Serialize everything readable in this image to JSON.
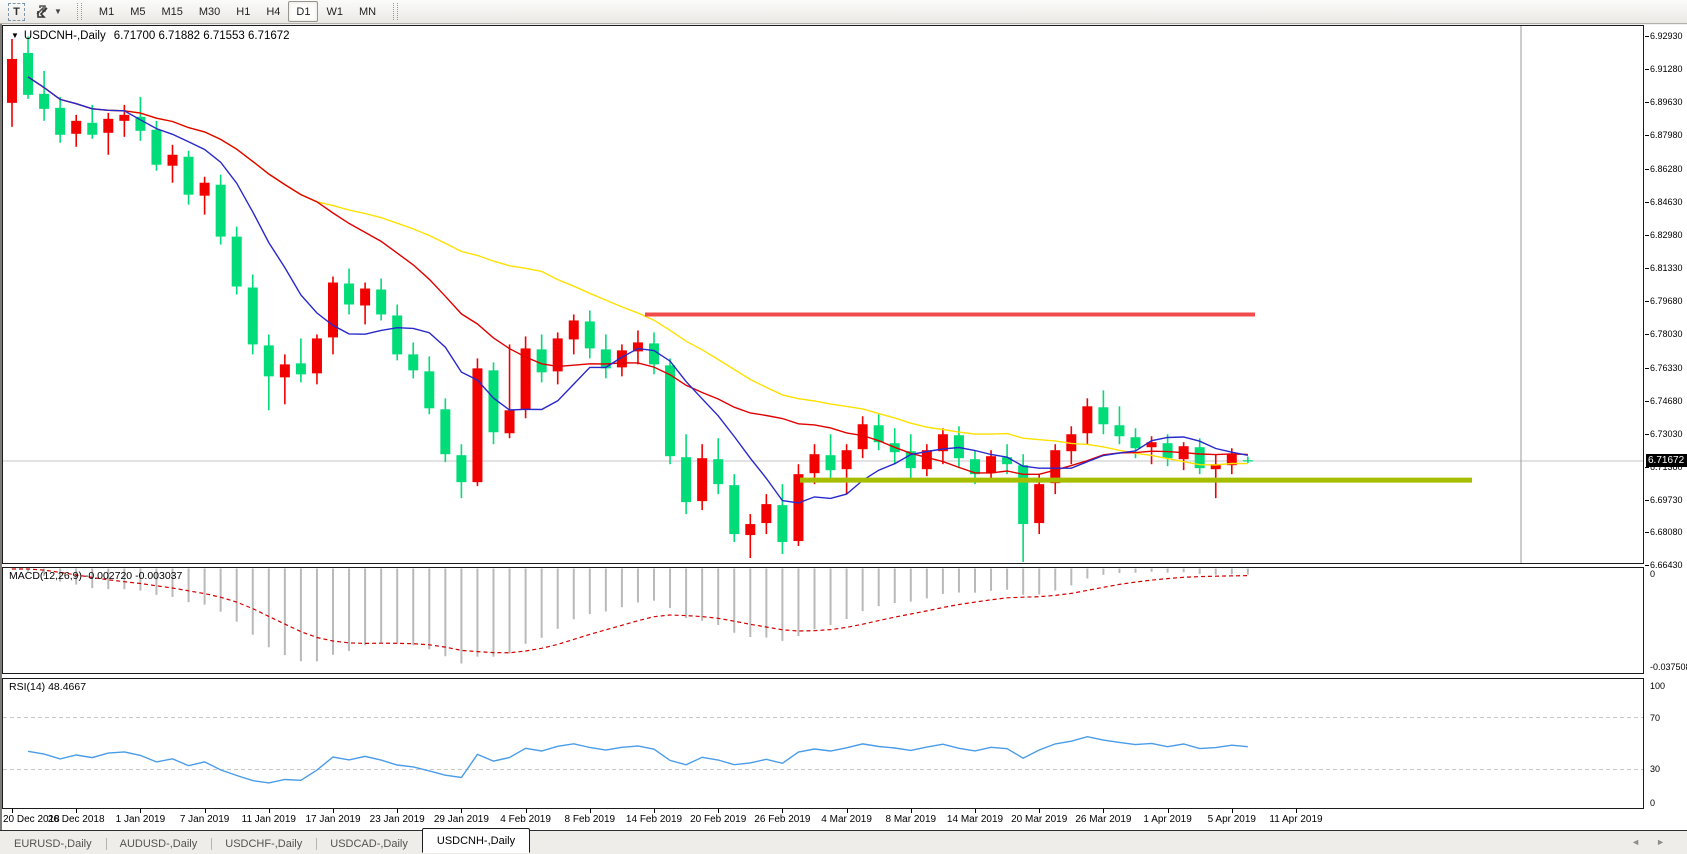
{
  "toolbar": {
    "text_tool_label": "T",
    "timeframes": [
      "M1",
      "M5",
      "M15",
      "M30",
      "H1",
      "H4",
      "D1",
      "W1",
      "MN"
    ],
    "active_timeframe": "D1"
  },
  "chart_header": {
    "collapse_icon": "▼",
    "symbol": "USDCNH-,Daily",
    "ohlc": "6.71700 6.71882 6.71553 6.71672"
  },
  "price_axis": {
    "labels": [
      6.9293,
      6.9128,
      6.8963,
      6.8798,
      6.8628,
      6.8463,
      6.8298,
      6.8133,
      6.7968,
      6.7803,
      6.7633,
      6.7468,
      6.7303,
      6.7138,
      6.6973,
      6.6808,
      6.6643
    ],
    "current_price": "6.71672",
    "current_price_value": 6.71672,
    "current_line_color": "#c6c6c6"
  },
  "indicators": {
    "macd": {
      "label": "MACD(12,26,9) -0.002720 -0.003037",
      "axis_labels": [
        "0",
        "-0.037508"
      ],
      "histogram_color": "#b9b9b9",
      "signal_color": "#d40000",
      "fast": 12,
      "slow": 26,
      "signal": 9
    },
    "rsi": {
      "label": "RSI(14) 48.4667",
      "axis_labels": [
        "100",
        "70",
        "30",
        "0"
      ],
      "axis_values": [
        100,
        70,
        30,
        0
      ],
      "levels": [
        70,
        30
      ],
      "line_color": "#4a9ce8",
      "level_color": "#c8c8c8",
      "period": 14
    }
  },
  "date_axis": {
    "labels": [
      "20 Dec 2018",
      "26 Dec 2018",
      "1 Jan 2019",
      "7 Jan 2019",
      "11 Jan 2019",
      "17 Jan 2019",
      "23 Jan 2019",
      "29 Jan 2019",
      "4 Feb 2019",
      "8 Feb 2019",
      "14 Feb 2019",
      "20 Feb 2019",
      "26 Feb 2019",
      "4 Mar 2019",
      "8 Mar 2019",
      "14 Mar 2019",
      "20 Mar 2019",
      "26 Mar 2019",
      "1 Apr 2019",
      "5 Apr 2019",
      "11 Apr 2019"
    ],
    "bars_per_label": 4
  },
  "tabs": {
    "items": [
      "EURUSD-,Daily",
      "AUDUSD-,Daily",
      "USDCHF-,Daily",
      "USDCAD-,Daily",
      "USDCNH-,Daily"
    ],
    "active": "USDCNH-,Daily",
    "scroll_left_icon": "◄",
    "scroll_right_icon": "►"
  },
  "chart_data": {
    "type": "candlestick",
    "symbol": "USDCNH-",
    "timeframe": "Daily",
    "bull_color": "#f20000",
    "bear_color": "#00dc78",
    "ylim": [
      6.6655,
      6.9345
    ],
    "candles": [
      [
        6.896,
        6.928,
        6.884,
        6.918
      ],
      [
        6.921,
        6.9293,
        6.898,
        6.9
      ],
      [
        6.9005,
        6.912,
        6.887,
        6.893
      ],
      [
        6.8935,
        6.899,
        6.876,
        6.88
      ],
      [
        6.8805,
        6.89,
        6.874,
        6.887
      ],
      [
        6.886,
        6.895,
        6.878,
        6.88
      ],
      [
        6.881,
        6.891,
        6.87,
        6.888
      ],
      [
        6.887,
        6.895,
        6.879,
        6.89
      ],
      [
        6.889,
        6.899,
        6.877,
        6.882
      ],
      [
        6.8825,
        6.887,
        6.862,
        6.865
      ],
      [
        6.8645,
        6.875,
        6.856,
        6.87
      ],
      [
        6.869,
        6.872,
        6.845,
        6.85
      ],
      [
        6.8495,
        6.859,
        6.84,
        6.856
      ],
      [
        6.855,
        6.86,
        6.825,
        6.829
      ],
      [
        6.829,
        6.834,
        6.8,
        6.804
      ],
      [
        6.8035,
        6.81,
        6.77,
        6.775
      ],
      [
        6.7745,
        6.78,
        6.742,
        6.759
      ],
      [
        6.7585,
        6.77,
        6.745,
        6.765
      ],
      [
        6.7655,
        6.778,
        6.756,
        6.76
      ],
      [
        6.7605,
        6.78,
        6.755,
        6.778
      ],
      [
        6.7785,
        6.809,
        6.77,
        6.806
      ],
      [
        6.8055,
        6.813,
        6.79,
        6.795
      ],
      [
        6.7945,
        6.806,
        6.785,
        6.803
      ],
      [
        6.8025,
        6.808,
        6.787,
        6.79
      ],
      [
        6.7895,
        6.795,
        6.767,
        6.77
      ],
      [
        6.77,
        6.776,
        6.758,
        6.762
      ],
      [
        6.7615,
        6.769,
        6.74,
        6.743
      ],
      [
        6.7425,
        6.748,
        6.716,
        6.72
      ],
      [
        6.7195,
        6.725,
        6.698,
        6.706
      ],
      [
        6.706,
        6.768,
        6.704,
        6.763
      ],
      [
        6.762,
        6.766,
        6.725,
        6.731
      ],
      [
        6.7305,
        6.775,
        6.728,
        6.742
      ],
      [
        6.7425,
        6.779,
        6.738,
        6.773
      ],
      [
        6.7725,
        6.78,
        6.756,
        6.761
      ],
      [
        6.7615,
        6.781,
        6.755,
        6.778
      ],
      [
        6.7775,
        6.79,
        6.77,
        6.787
      ],
      [
        6.7865,
        6.792,
        6.768,
        6.773
      ],
      [
        6.7725,
        6.78,
        6.758,
        6.763
      ],
      [
        6.7635,
        6.775,
        6.759,
        6.772
      ],
      [
        6.7715,
        6.782,
        6.765,
        6.776
      ],
      [
        6.7755,
        6.781,
        6.76,
        6.765
      ],
      [
        6.7645,
        6.768,
        6.715,
        6.719
      ],
      [
        6.7185,
        6.73,
        6.69,
        6.696
      ],
      [
        6.6965,
        6.725,
        6.692,
        6.718
      ],
      [
        6.7175,
        6.728,
        6.7,
        6.705
      ],
      [
        6.7045,
        6.71,
        6.676,
        6.68
      ],
      [
        6.6795,
        6.69,
        6.668,
        6.685
      ],
      [
        6.6855,
        6.7,
        6.68,
        6.695
      ],
      [
        6.6945,
        6.705,
        6.67,
        6.676
      ],
      [
        6.6765,
        6.715,
        6.674,
        6.71
      ],
      [
        6.7105,
        6.725,
        6.705,
        6.72
      ],
      [
        6.7195,
        6.73,
        6.707,
        6.712
      ],
      [
        6.7125,
        6.725,
        6.7,
        6.722
      ],
      [
        6.7225,
        6.739,
        6.718,
        6.735
      ],
      [
        6.7345,
        6.74,
        6.722,
        6.726
      ],
      [
        6.7255,
        6.733,
        6.715,
        6.721
      ],
      [
        6.7215,
        6.73,
        6.708,
        6.713
      ],
      [
        6.7125,
        6.725,
        6.709,
        6.722
      ],
      [
        6.7215,
        6.733,
        6.715,
        6.73
      ],
      [
        6.7295,
        6.734,
        6.713,
        6.718
      ],
      [
        6.7175,
        6.722,
        6.705,
        6.71
      ],
      [
        6.7105,
        6.722,
        6.706,
        6.719
      ],
      [
        6.7185,
        6.725,
        6.71,
        6.715
      ],
      [
        6.7145,
        6.72,
        6.666,
        6.685
      ],
      [
        6.6855,
        6.71,
        6.68,
        6.705
      ],
      [
        6.7055,
        6.725,
        6.7,
        6.722
      ],
      [
        6.7215,
        6.734,
        6.715,
        6.73
      ],
      [
        6.7305,
        6.748,
        6.725,
        6.744
      ],
      [
        6.7435,
        6.752,
        6.73,
        6.735
      ],
      [
        6.7345,
        6.744,
        6.725,
        6.729
      ],
      [
        6.7285,
        6.733,
        6.718,
        6.723
      ],
      [
        6.7235,
        6.729,
        6.715,
        6.726
      ],
      [
        6.7255,
        6.73,
        6.714,
        6.718
      ],
      [
        6.7175,
        6.726,
        6.712,
        6.724
      ],
      [
        6.7235,
        6.728,
        6.71,
        6.713
      ],
      [
        6.7125,
        6.72,
        6.698,
        6.715
      ],
      [
        6.7145,
        6.723,
        6.71,
        6.72
      ],
      [
        6.717,
        6.7188,
        6.7155,
        6.7167
      ]
    ],
    "moving_averages": [
      {
        "period": 34,
        "color": "#ffe000"
      },
      {
        "period": 20,
        "color": "#e00000"
      },
      {
        "period": 8,
        "color": "#2828cc"
      }
    ],
    "horizontal_lines": [
      {
        "price": 6.79,
        "color": "#f24b4b",
        "width": 4,
        "x_from": 642,
        "x_to": 1252,
        "name": "resistance"
      },
      {
        "price": 6.707,
        "color": "#a6be00",
        "width": 5,
        "x_from": 797,
        "x_to": 1469,
        "name": "support"
      }
    ],
    "vertical_guide_x": 1518
  }
}
